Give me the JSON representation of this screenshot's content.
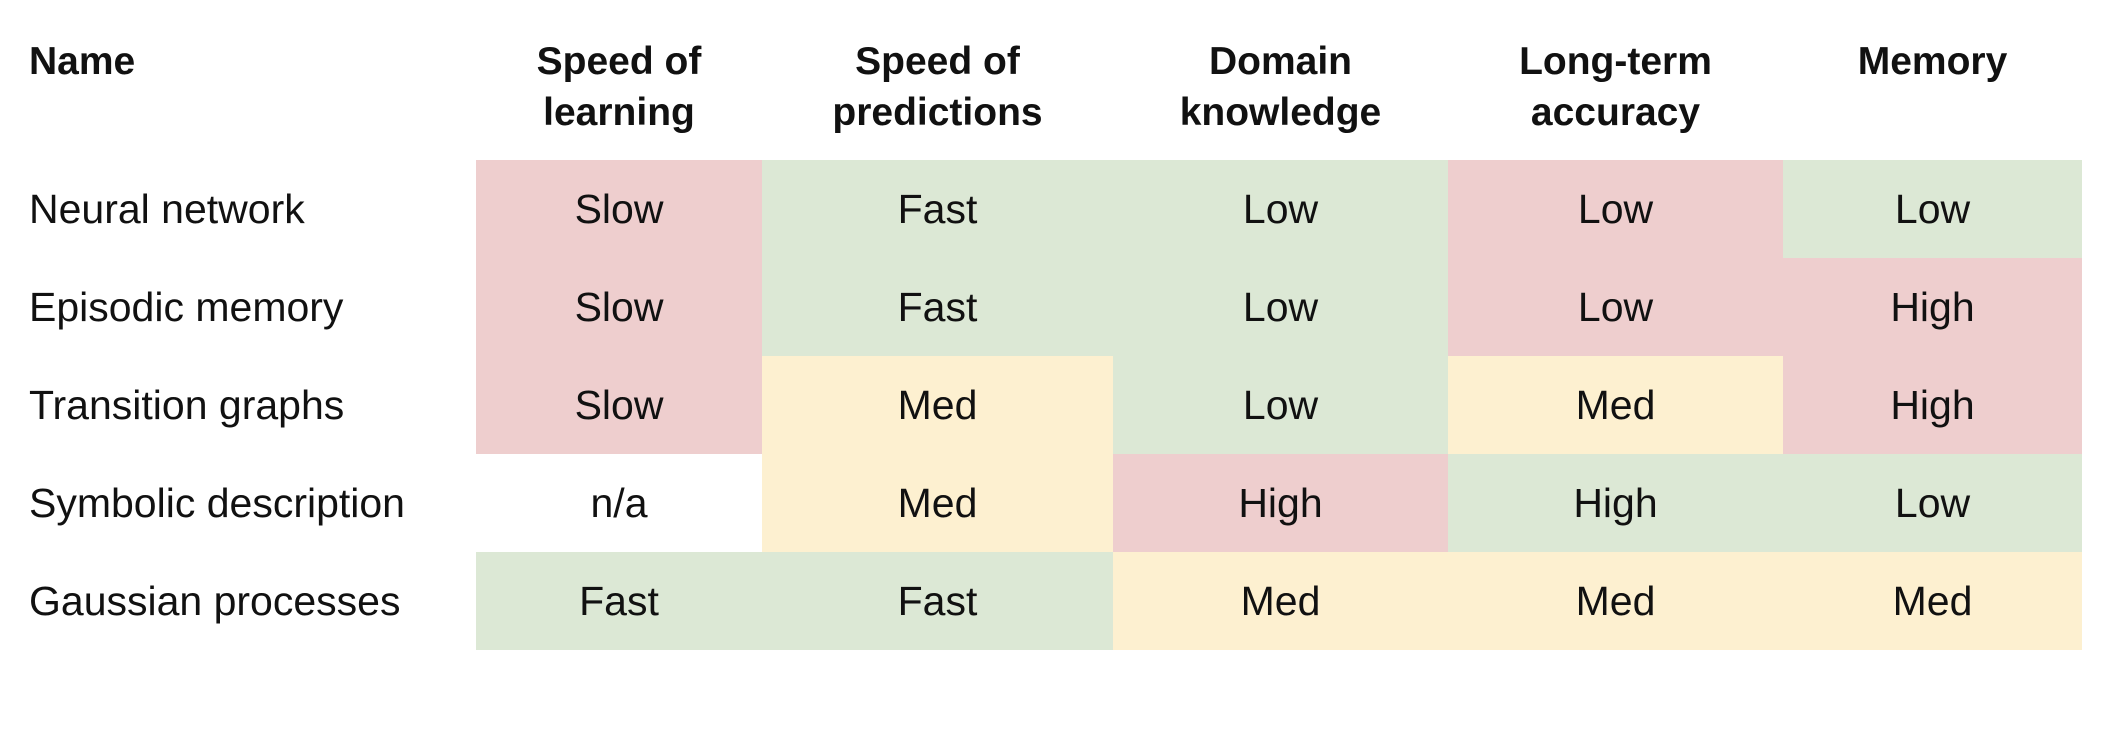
{
  "colors": {
    "slow_low_red": "#eecece",
    "fast_green": "#dce8d5",
    "med_yellow": "#fdf0d0",
    "none_white": "#ffffff"
  },
  "table": {
    "headers": [
      [
        "Name"
      ],
      [
        "Speed of",
        "learning"
      ],
      [
        "Speed of",
        "predictions"
      ],
      [
        "Domain",
        "knowledge"
      ],
      [
        "Long-term",
        "accuracy"
      ],
      [
        "Memory"
      ]
    ],
    "rows": [
      {
        "name": "Neural network",
        "cells": [
          {
            "value": "Slow",
            "color": "#eecece"
          },
          {
            "value": "Fast",
            "color": "#dce8d5"
          },
          {
            "value": "Low",
            "color": "#dce8d5"
          },
          {
            "value": "Low",
            "color": "#eecece"
          },
          {
            "value": "Low",
            "color": "#dce8d5"
          }
        ]
      },
      {
        "name": "Episodic memory",
        "cells": [
          {
            "value": "Slow",
            "color": "#eecece"
          },
          {
            "value": "Fast",
            "color": "#dce8d5"
          },
          {
            "value": "Low",
            "color": "#dce8d5"
          },
          {
            "value": "Low",
            "color": "#eecece"
          },
          {
            "value": "High",
            "color": "#eecece"
          }
        ]
      },
      {
        "name": "Transition graphs",
        "cells": [
          {
            "value": "Slow",
            "color": "#eecece"
          },
          {
            "value": "Med",
            "color": "#fdf0d0"
          },
          {
            "value": "Low",
            "color": "#dce8d5"
          },
          {
            "value": "Med",
            "color": "#fdf0d0"
          },
          {
            "value": "High",
            "color": "#eecece"
          }
        ]
      },
      {
        "name": "Symbolic description",
        "cells": [
          {
            "value": "n/a",
            "color": "#ffffff"
          },
          {
            "value": "Med",
            "color": "#fdf0d0"
          },
          {
            "value": "High",
            "color": "#eecece"
          },
          {
            "value": "High",
            "color": "#dce8d5"
          },
          {
            "value": "Low",
            "color": "#dce8d5"
          }
        ]
      },
      {
        "name": "Gaussian processes",
        "cells": [
          {
            "value": "Fast",
            "color": "#dce8d5"
          },
          {
            "value": "Fast",
            "color": "#dce8d5"
          },
          {
            "value": "Med",
            "color": "#fdf0d0"
          },
          {
            "value": "Med",
            "color": "#fdf0d0"
          },
          {
            "value": "Med",
            "color": "#fdf0d0"
          }
        ]
      }
    ]
  }
}
